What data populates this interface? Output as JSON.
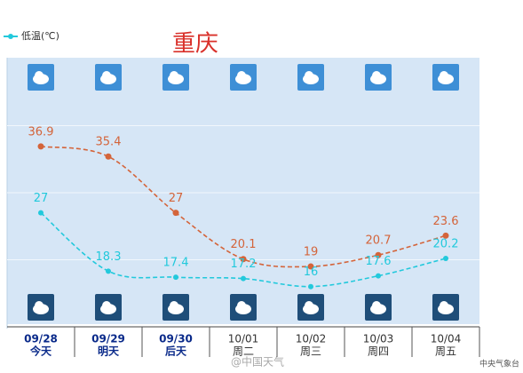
{
  "chart_data": {
    "type": "line",
    "title": "重庆",
    "categories": [
      "09/28",
      "09/29",
      "09/30",
      "10/01",
      "10/02",
      "10/03",
      "10/04"
    ],
    "weekdays": [
      "今天",
      "明天",
      "后天",
      "周二",
      "周三",
      "周四",
      "周五"
    ],
    "series": [
      {
        "color": "#d4643a",
        "values": [
          36.9,
          35.4,
          27,
          20.1,
          19,
          20.7,
          23.6
        ]
      },
      {
        "name": "低温(℃)",
        "color": "#22c9dc",
        "values": [
          27,
          18.3,
          17.4,
          17.2,
          16,
          17.6,
          20.2
        ]
      }
    ],
    "ylim": [
      10,
      50
    ],
    "yticks": [
      20,
      30,
      40
    ],
    "grid": true,
    "source": "中央气象台",
    "watermark": "@中国天气"
  }
}
